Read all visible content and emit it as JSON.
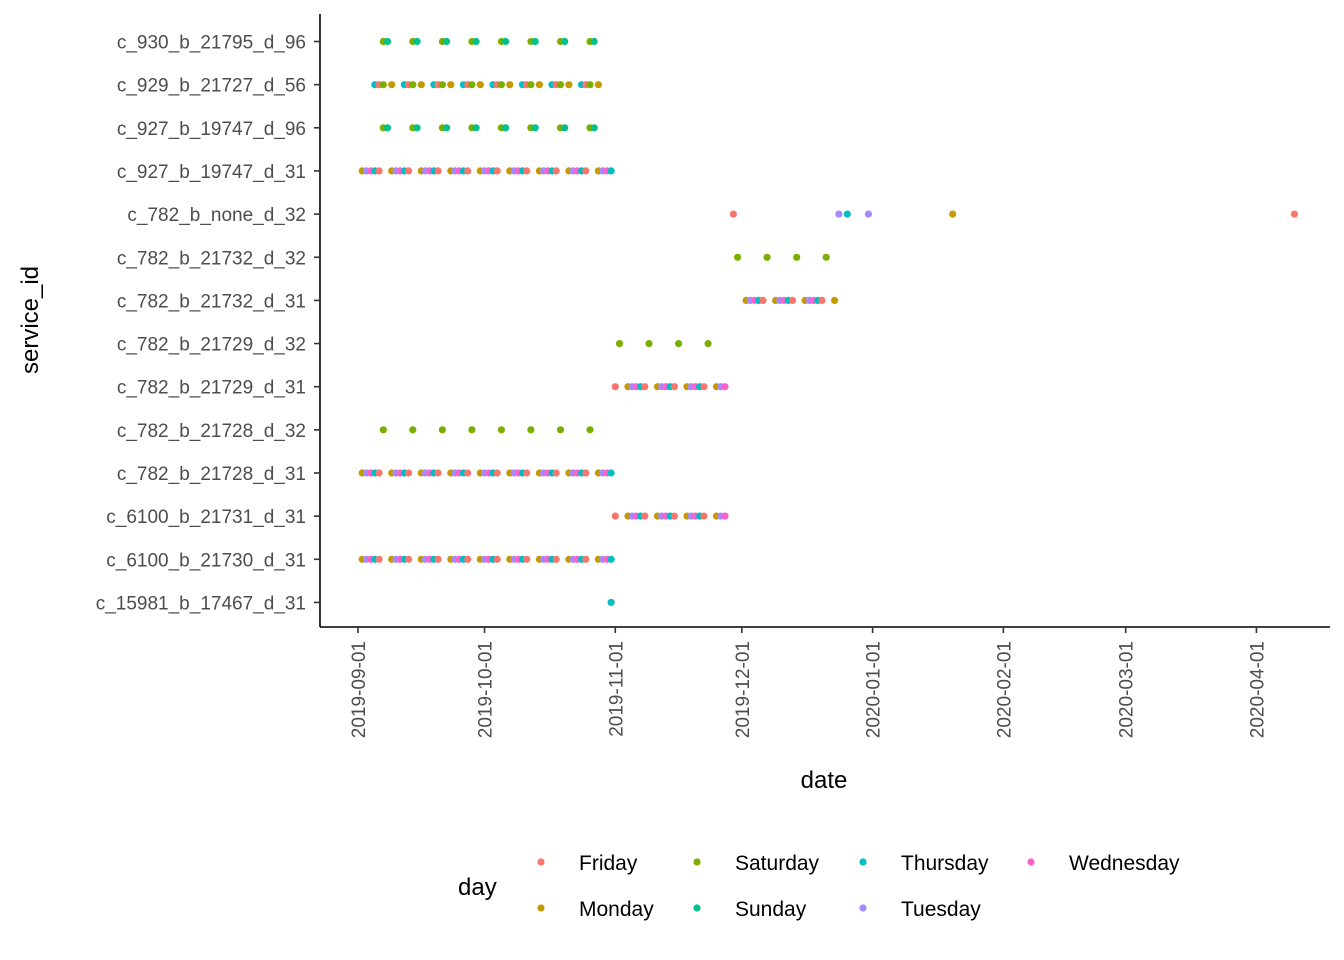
{
  "chart_data": {
    "type": "scatter",
    "xlabel": "date",
    "ylabel": "service_id",
    "x_ticks": [
      "2019-09-01",
      "2019-10-01",
      "2019-11-01",
      "2019-12-01",
      "2020-01-01",
      "2020-02-01",
      "2020-03-01",
      "2020-04-01"
    ],
    "xlim": [
      "2019-08-29",
      "2020-04-22"
    ],
    "grid": false,
    "legend": {
      "title": "day",
      "placement": "bottom",
      "entries": [
        {
          "name": "Friday",
          "color": "#F8766D"
        },
        {
          "name": "Saturday",
          "color": "#7CAE00"
        },
        {
          "name": "Thursday",
          "color": "#00BFC4"
        },
        {
          "name": "Wednesday",
          "color": "#FF61CC"
        },
        {
          "name": "Monday",
          "color": "#C49A00"
        },
        {
          "name": "Sunday",
          "color": "#00C08B"
        },
        {
          "name": "Tuesday",
          "color": "#A58AFF"
        }
      ]
    },
    "categories": [
      "c_930_b_21795_d_96",
      "c_929_b_21727_d_56",
      "c_927_b_19747_d_96",
      "c_927_b_19747_d_31",
      "c_782_b_none_d_32",
      "c_782_b_21732_d_32",
      "c_782_b_21732_d_31",
      "c_782_b_21729_d_32",
      "c_782_b_21729_d_31",
      "c_782_b_21728_d_32",
      "c_782_b_21728_d_31",
      "c_6100_b_21731_d_31",
      "c_6100_b_21730_d_31",
      "c_15981_b_17467_d_31"
    ],
    "series": [
      {
        "service_id": "c_930_b_21795_d_96",
        "days": [
          "Saturday",
          "Sunday"
        ],
        "start": "2019-09-07",
        "end": "2019-10-27"
      },
      {
        "service_id": "c_929_b_21727_d_56",
        "days": [
          "Thursday",
          "Friday",
          "Saturday",
          "Monday"
        ],
        "start": "2019-09-05",
        "end": "2019-10-28"
      },
      {
        "service_id": "c_927_b_19747_d_96",
        "days": [
          "Saturday",
          "Sunday"
        ],
        "start": "2019-09-07",
        "end": "2019-10-27"
      },
      {
        "service_id": "c_927_b_19747_d_31",
        "days": [
          "Monday",
          "Tuesday",
          "Wednesday",
          "Thursday",
          "Friday"
        ],
        "start": "2019-09-02",
        "end": "2019-10-31"
      },
      {
        "service_id": "c_782_b_none_d_32",
        "points": [
          {
            "date": "2019-11-29",
            "day": "Friday"
          },
          {
            "date": "2019-12-24",
            "day": "Tuesday"
          },
          {
            "date": "2019-12-26",
            "day": "Thursday"
          },
          {
            "date": "2019-12-31",
            "day": "Tuesday"
          },
          {
            "date": "2020-01-20",
            "day": "Monday"
          },
          {
            "date": "2020-04-10",
            "day": "Friday"
          }
        ]
      },
      {
        "service_id": "c_782_b_21732_d_32",
        "days": [
          "Saturday"
        ],
        "start": "2019-11-30",
        "end": "2019-12-21"
      },
      {
        "service_id": "c_782_b_21732_d_31",
        "days": [
          "Monday",
          "Tuesday",
          "Wednesday",
          "Thursday",
          "Friday"
        ],
        "start": "2019-12-02",
        "end": "2019-12-23"
      },
      {
        "service_id": "c_782_b_21729_d_32",
        "days": [
          "Saturday"
        ],
        "start": "2019-11-02",
        "end": "2019-11-23"
      },
      {
        "service_id": "c_782_b_21729_d_31",
        "days": [
          "Monday",
          "Tuesday",
          "Wednesday",
          "Thursday",
          "Friday"
        ],
        "start": "2019-11-01",
        "end": "2019-11-27"
      },
      {
        "service_id": "c_782_b_21728_d_32",
        "days": [
          "Saturday"
        ],
        "start": "2019-09-07",
        "end": "2019-10-26"
      },
      {
        "service_id": "c_782_b_21728_d_31",
        "days": [
          "Monday",
          "Tuesday",
          "Wednesday",
          "Thursday",
          "Friday"
        ],
        "start": "2019-09-02",
        "end": "2019-10-31"
      },
      {
        "service_id": "c_6100_b_21731_d_31",
        "days": [
          "Monday",
          "Tuesday",
          "Wednesday",
          "Thursday",
          "Friday"
        ],
        "start": "2019-11-01",
        "end": "2019-11-27"
      },
      {
        "service_id": "c_6100_b_21730_d_31",
        "days": [
          "Monday",
          "Tuesday",
          "Wednesday",
          "Thursday",
          "Friday"
        ],
        "start": "2019-09-02",
        "end": "2019-10-31"
      },
      {
        "service_id": "c_15981_b_17467_d_31",
        "points": [
          {
            "date": "2019-10-31",
            "day": "Thursday"
          }
        ]
      }
    ]
  }
}
